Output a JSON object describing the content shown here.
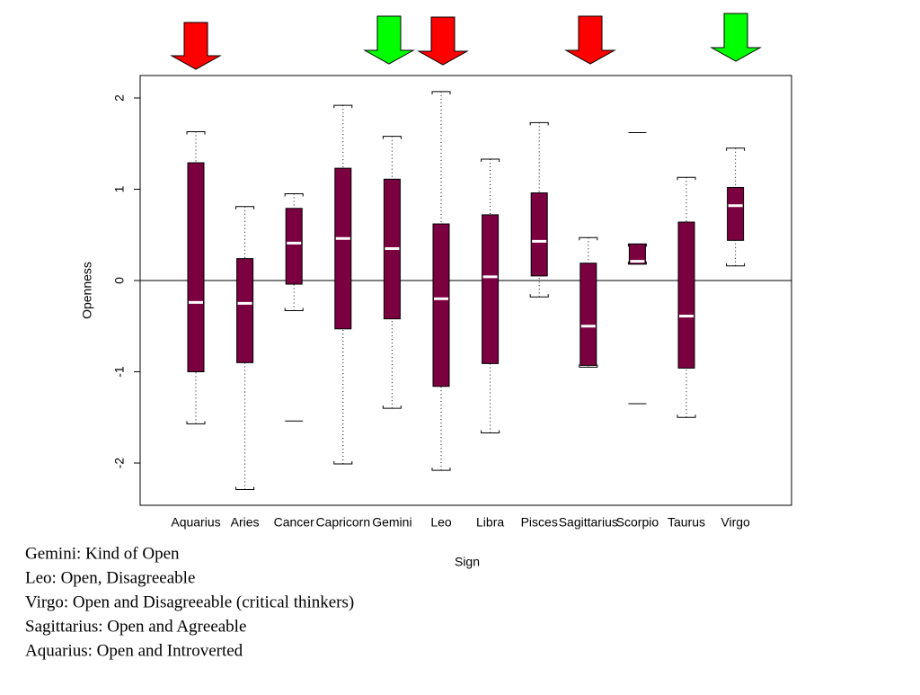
{
  "chart_data": {
    "type": "box",
    "x_label": "Sign",
    "y_label": "Openness",
    "categories": [
      "Aquarius",
      "Aries",
      "Cancer",
      "Capricorn",
      "Gemini",
      "Leo",
      "Libra",
      "Pisces",
      "Sagittarius",
      "Scorpio",
      "Taurus",
      "Virgo"
    ],
    "boxes": [
      {
        "min": -1.57,
        "q1": -1.0,
        "median": -0.24,
        "q3": 1.29,
        "max": 1.63
      },
      {
        "min": -2.29,
        "q1": -0.9,
        "median": -0.25,
        "q3": 0.24,
        "max": 0.81
      },
      {
        "min": -0.33,
        "q1": -0.04,
        "median": 0.41,
        "q3": 0.79,
        "max": 0.95
      },
      {
        "min": -2.01,
        "q1": -0.53,
        "median": 0.46,
        "q3": 1.23,
        "max": 1.92
      },
      {
        "min": -1.4,
        "q1": -0.42,
        "median": 0.35,
        "q3": 1.11,
        "max": 1.58
      },
      {
        "min": -2.08,
        "q1": -1.16,
        "median": -0.2,
        "q3": 0.62,
        "max": 2.07
      },
      {
        "min": -1.67,
        "q1": -0.91,
        "median": 0.04,
        "q3": 0.72,
        "max": 1.33
      },
      {
        "min": -0.18,
        "q1": 0.05,
        "median": 0.43,
        "q3": 0.96,
        "max": 1.73
      },
      {
        "min": -0.95,
        "q1": -0.93,
        "median": -0.5,
        "q3": 0.19,
        "max": 0.47
      },
      {
        "min": 0.18,
        "q1": 0.18,
        "median": 0.21,
        "q3": 0.4,
        "max": 0.4
      },
      {
        "min": -1.5,
        "q1": -0.96,
        "median": -0.39,
        "q3": 0.64,
        "max": 1.13
      },
      {
        "min": 0.16,
        "q1": 0.44,
        "median": 0.82,
        "q3": 1.02,
        "max": 1.45
      }
    ],
    "outliers": [
      [],
      [],
      [
        -1.54
      ],
      [],
      [],
      [],
      [],
      [],
      [],
      [
        1.62,
        -1.35
      ],
      [],
      []
    ],
    "color": "#7a0040",
    "median_color": "#ffffff",
    "hline": 0,
    "ylim": [
      -2.463,
      2.246
    ],
    "yticks": [
      -2,
      -1,
      0,
      1,
      2
    ]
  },
  "notes": [
    "Gemini: Kind of Open",
    "Leo: Open, Disagreeable",
    "Virgo: Open and Disagreeable (critical thinkers)",
    "Sagittarius: Open and Agreeable",
    "Aquarius: Open and Introverted"
  ]
}
